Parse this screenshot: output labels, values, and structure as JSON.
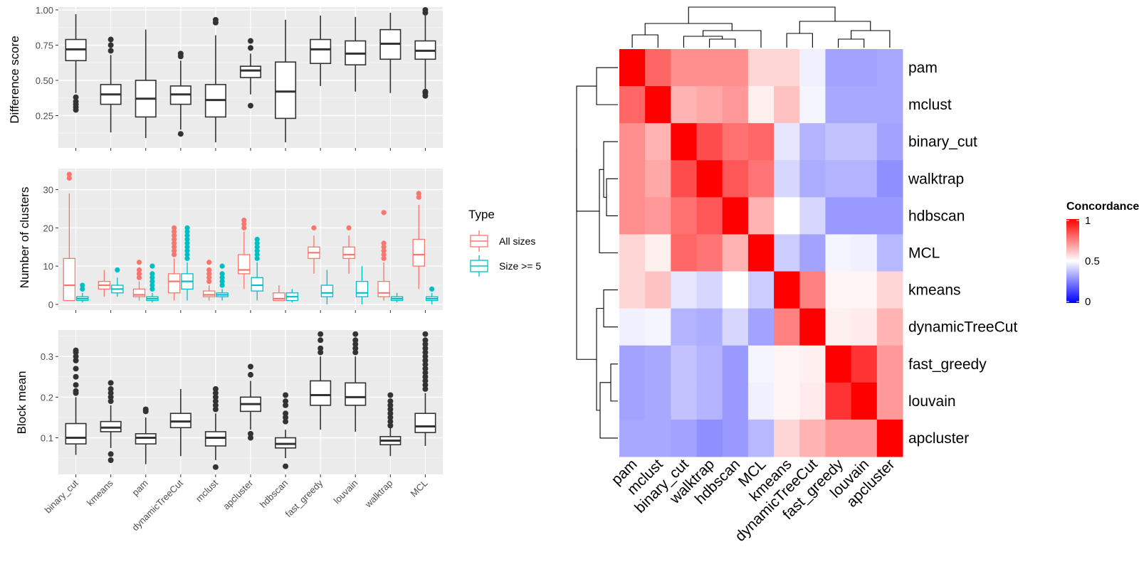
{
  "chart_data": [
    {
      "id": "difference-score",
      "type": "boxplot",
      "ylabel": "Difference score",
      "ylim": [
        0.02,
        1.02
      ],
      "yticks": [
        0.25,
        0.5,
        0.75,
        1.0
      ],
      "ytick_labels": [
        "0.25",
        "0.50",
        "0.75",
        "1.00"
      ],
      "categories": [
        "binary_cut",
        "kmeans",
        "pam",
        "dynamicTreeCut",
        "mclust",
        "apcluster",
        "hdbscan",
        "fast_greedy",
        "louvain",
        "walktrap",
        "MCL"
      ],
      "series": [
        {
          "name": "all",
          "color": "#333333",
          "boxes": [
            {
              "q1": 0.64,
              "median": 0.72,
              "q3": 0.79,
              "lo": 0.41,
              "hi": 0.97,
              "out": [
                0.29,
                0.31,
                0.33,
                0.35,
                0.38
              ]
            },
            {
              "q1": 0.33,
              "median": 0.4,
              "q3": 0.47,
              "lo": 0.13,
              "hi": 0.68,
              "out": [
                0.71,
                0.75,
                0.79
              ]
            },
            {
              "q1": 0.24,
              "median": 0.37,
              "q3": 0.5,
              "lo": 0.09,
              "hi": 0.86,
              "out": []
            },
            {
              "q1": 0.33,
              "median": 0.4,
              "q3": 0.46,
              "lo": 0.15,
              "hi": 0.64,
              "out": [
                0.12,
                0.67,
                0.69
              ]
            },
            {
              "q1": 0.24,
              "median": 0.36,
              "q3": 0.47,
              "lo": 0.06,
              "hi": 0.82,
              "out": [
                0.91,
                0.93
              ]
            },
            {
              "q1": 0.52,
              "median": 0.57,
              "q3": 0.6,
              "lo": 0.4,
              "hi": 0.69,
              "out": [
                0.32,
                0.73,
                0.78
              ]
            },
            {
              "q1": 0.23,
              "median": 0.42,
              "q3": 0.63,
              "lo": 0.06,
              "hi": 0.93,
              "out": []
            },
            {
              "q1": 0.62,
              "median": 0.72,
              "q3": 0.79,
              "lo": 0.46,
              "hi": 0.96,
              "out": []
            },
            {
              "q1": 0.61,
              "median": 0.69,
              "q3": 0.78,
              "lo": 0.42,
              "hi": 0.95,
              "out": []
            },
            {
              "q1": 0.65,
              "median": 0.76,
              "q3": 0.86,
              "lo": 0.41,
              "hi": 0.98,
              "out": []
            },
            {
              "q1": 0.65,
              "median": 0.71,
              "q3": 0.78,
              "lo": 0.44,
              "hi": 0.96,
              "out": [
                0.39,
                0.41,
                0.42,
                0.98,
                1.0
              ]
            }
          ]
        }
      ]
    },
    {
      "id": "number-of-clusters",
      "type": "boxplot",
      "ylabel": "Number of clusters",
      "ylim": [
        -1.5,
        35.5
      ],
      "yticks": [
        0,
        10,
        20,
        30
      ],
      "ytick_labels": [
        "0",
        "10",
        "20",
        "30"
      ],
      "categories": [
        "binary_cut",
        "kmeans",
        "pam",
        "dynamicTreeCut",
        "mclust",
        "apcluster",
        "hdbscan",
        "fast_greedy",
        "louvain",
        "walktrap",
        "MCL"
      ],
      "series": [
        {
          "name": "All sizes",
          "color": "#F8766D",
          "boxes": [
            {
              "q1": 1,
              "median": 5,
              "q3": 12,
              "lo": 1,
              "hi": 29,
              "out": [
                33,
                34
              ]
            },
            {
              "q1": 4,
              "median": 5,
              "q3": 6,
              "lo": 2,
              "hi": 9,
              "out": []
            },
            {
              "q1": 2,
              "median": 2.5,
              "q3": 4,
              "lo": 1,
              "hi": 6,
              "out": [
                7,
                8,
                9,
                11
              ]
            },
            {
              "q1": 3,
              "median": 6,
              "q3": 8,
              "lo": 1,
              "hi": 12,
              "out": [
                13,
                14,
                15,
                16,
                17,
                18,
                19,
                20
              ]
            },
            {
              "q1": 2,
              "median": 2.5,
              "q3": 3.5,
              "lo": 1,
              "hi": 5,
              "out": [
                6,
                7,
                8,
                9,
                11
              ]
            },
            {
              "q1": 8,
              "median": 9,
              "q3": 13,
              "lo": 4,
              "hi": 19,
              "out": [
                20,
                21,
                22
              ]
            },
            {
              "q1": 1,
              "median": 1.5,
              "q3": 3,
              "lo": 1,
              "hi": 5,
              "out": []
            },
            {
              "q1": 12,
              "median": 13.5,
              "q3": 15,
              "lo": 8,
              "hi": 18,
              "out": [
                20
              ]
            },
            {
              "q1": 12,
              "median": 13,
              "q3": 15,
              "lo": 8,
              "hi": 18,
              "out": [
                20
              ]
            },
            {
              "q1": 2,
              "median": 3,
              "q3": 6,
              "lo": 1,
              "hi": 11,
              "out": [
                12,
                13,
                14,
                15,
                16,
                24
              ]
            },
            {
              "q1": 10,
              "median": 13,
              "q3": 17,
              "lo": 4,
              "hi": 26,
              "out": [
                28,
                29
              ]
            }
          ]
        },
        {
          "name": "Size >= 5",
          "color": "#00BFC4",
          "boxes": [
            {
              "q1": 1,
              "median": 1.5,
              "q3": 2,
              "lo": 0.5,
              "hi": 3,
              "out": [
                4,
                5
              ]
            },
            {
              "q1": 3,
              "median": 4,
              "q3": 5,
              "lo": 2,
              "hi": 7,
              "out": [
                9
              ]
            },
            {
              "q1": 1,
              "median": 1.5,
              "q3": 2,
              "lo": 0.5,
              "hi": 3,
              "out": [
                4,
                5,
                6,
                7,
                8,
                10
              ]
            },
            {
              "q1": 4,
              "median": 6,
              "q3": 8,
              "lo": 1,
              "hi": 11,
              "out": [
                12,
                13,
                14,
                15,
                16,
                17,
                18,
                19,
                20
              ]
            },
            {
              "q1": 2,
              "median": 2.5,
              "q3": 3,
              "lo": 1,
              "hi": 4,
              "out": [
                5,
                6,
                7,
                8,
                10
              ]
            },
            {
              "q1": 3.5,
              "median": 5,
              "q3": 7,
              "lo": 1,
              "hi": 11,
              "out": [
                12,
                13,
                14,
                15,
                16,
                17
              ]
            },
            {
              "q1": 1,
              "median": 2,
              "q3": 3,
              "lo": 0.5,
              "hi": 4,
              "out": []
            },
            {
              "q1": 2,
              "median": 3,
              "q3": 5,
              "lo": 0,
              "hi": 9,
              "out": []
            },
            {
              "q1": 2,
              "median": 3,
              "q3": 6,
              "lo": 0,
              "hi": 10,
              "out": []
            },
            {
              "q1": 1,
              "median": 1.5,
              "q3": 2,
              "lo": 0.5,
              "hi": 3,
              "out": []
            },
            {
              "q1": 1,
              "median": 1.5,
              "q3": 2,
              "lo": 0,
              "hi": 3,
              "out": [
                4
              ]
            }
          ]
        }
      ]
    },
    {
      "id": "block-mean",
      "type": "boxplot",
      "ylabel": "Block mean",
      "ylim": [
        0.01,
        0.365
      ],
      "yticks": [
        0.1,
        0.2,
        0.3
      ],
      "ytick_labels": [
        "0.1",
        "0.2",
        "0.3"
      ],
      "categories": [
        "binary_cut",
        "kmeans",
        "pam",
        "dynamicTreeCut",
        "mclust",
        "apcluster",
        "hdbscan",
        "fast_greedy",
        "louvain",
        "walktrap",
        "MCL"
      ],
      "series": [
        {
          "name": "all",
          "color": "#333333",
          "boxes": [
            {
              "q1": 0.085,
              "median": 0.1,
              "q3": 0.135,
              "lo": 0.058,
              "hi": 0.2,
              "out": [
                0.21,
                0.215,
                0.23,
                0.25,
                0.27,
                0.29,
                0.3,
                0.31,
                0.315
              ]
            },
            {
              "q1": 0.115,
              "median": 0.125,
              "q3": 0.14,
              "lo": 0.075,
              "hi": 0.18,
              "out": [
                0.045,
                0.06,
                0.19,
                0.2,
                0.21,
                0.22,
                0.235
              ]
            },
            {
              "q1": 0.085,
              "median": 0.1,
              "q3": 0.11,
              "lo": 0.035,
              "hi": 0.15,
              "out": [
                0.165,
                0.17
              ]
            },
            {
              "q1": 0.125,
              "median": 0.14,
              "q3": 0.16,
              "lo": 0.055,
              "hi": 0.22,
              "out": []
            },
            {
              "q1": 0.08,
              "median": 0.1,
              "q3": 0.115,
              "lo": 0.045,
              "hi": 0.16,
              "out": [
                0.028,
                0.17,
                0.18,
                0.19,
                0.2,
                0.21,
                0.22
              ]
            },
            {
              "q1": 0.165,
              "median": 0.183,
              "q3": 0.2,
              "lo": 0.12,
              "hi": 0.24,
              "out": [
                0.1,
                0.11,
                0.255,
                0.275
              ]
            },
            {
              "q1": 0.075,
              "median": 0.085,
              "q3": 0.1,
              "lo": 0.05,
              "hi": 0.12,
              "out": [
                0.03,
                0.14,
                0.15,
                0.16,
                0.18,
                0.19,
                0.205
              ]
            },
            {
              "q1": 0.18,
              "median": 0.205,
              "q3": 0.24,
              "lo": 0.12,
              "hi": 0.3,
              "out": [
                0.31,
                0.32,
                0.34,
                0.355
              ]
            },
            {
              "q1": 0.18,
              "median": 0.2,
              "q3": 0.235,
              "lo": 0.115,
              "hi": 0.3,
              "out": [
                0.31,
                0.32,
                0.33,
                0.34,
                0.355
              ]
            },
            {
              "q1": 0.083,
              "median": 0.093,
              "q3": 0.103,
              "lo": 0.055,
              "hi": 0.125,
              "out": [
                0.13,
                0.14,
                0.15,
                0.16,
                0.17,
                0.18,
                0.19,
                0.205
              ]
            },
            {
              "q1": 0.113,
              "median": 0.128,
              "q3": 0.16,
              "lo": 0.08,
              "hi": 0.21,
              "out": [
                0.22,
                0.23,
                0.24,
                0.25,
                0.26,
                0.27,
                0.28,
                0.29,
                0.3,
                0.31,
                0.32,
                0.33,
                0.34,
                0.355
              ]
            }
          ]
        }
      ]
    },
    {
      "id": "concordance-heatmap",
      "type": "heatmap",
      "rows": [
        "pam",
        "mclust",
        "binary_cut",
        "walktrap",
        "hdbscan",
        "MCL",
        "kmeans",
        "dynamicTreeCut",
        "fast_greedy",
        "louvain",
        "apcluster"
      ],
      "columns": [
        "pam",
        "mclust",
        "binary_cut",
        "walktrap",
        "hdbscan",
        "MCL",
        "kmeans",
        "dynamicTreeCut",
        "fast_greedy",
        "louvain",
        "apcluster"
      ],
      "values": [
        [
          1.0,
          0.8,
          0.72,
          0.72,
          0.72,
          0.58,
          0.58,
          0.47,
          0.32,
          0.32,
          0.33
        ],
        [
          0.8,
          1.0,
          0.65,
          0.67,
          0.7,
          0.53,
          0.62,
          0.48,
          0.33,
          0.33,
          0.33
        ],
        [
          0.72,
          0.65,
          1.0,
          0.85,
          0.78,
          0.8,
          0.45,
          0.35,
          0.38,
          0.38,
          0.32
        ],
        [
          0.72,
          0.67,
          0.85,
          1.0,
          0.83,
          0.77,
          0.42,
          0.34,
          0.35,
          0.35,
          0.28
        ],
        [
          0.72,
          0.7,
          0.78,
          0.83,
          1.0,
          0.65,
          0.5,
          0.42,
          0.3,
          0.3,
          0.3
        ],
        [
          0.58,
          0.53,
          0.8,
          0.77,
          0.65,
          1.0,
          0.4,
          0.32,
          0.48,
          0.47,
          0.36
        ],
        [
          0.58,
          0.62,
          0.45,
          0.42,
          0.5,
          0.4,
          1.0,
          0.75,
          0.52,
          0.52,
          0.58
        ],
        [
          0.47,
          0.48,
          0.35,
          0.34,
          0.42,
          0.32,
          0.75,
          1.0,
          0.53,
          0.54,
          0.65
        ],
        [
          0.32,
          0.33,
          0.38,
          0.35,
          0.3,
          0.48,
          0.52,
          0.53,
          1.0,
          0.9,
          0.7
        ],
        [
          0.32,
          0.33,
          0.38,
          0.35,
          0.3,
          0.47,
          0.52,
          0.54,
          0.9,
          1.0,
          0.7
        ],
        [
          0.33,
          0.33,
          0.32,
          0.28,
          0.3,
          0.36,
          0.58,
          0.65,
          0.7,
          0.7,
          1.0
        ]
      ],
      "colorscale": {
        "low": "#0000FF",
        "mid": "#FFFFFF",
        "high": "#FF0000",
        "limits": [
          0,
          0.5,
          1
        ]
      }
    }
  ],
  "legend": {
    "title": "Type",
    "items": [
      {
        "label": "All sizes",
        "color": "#F8766D"
      },
      {
        "label": "Size >= 5",
        "color": "#00BFC4"
      }
    ]
  },
  "colorbar": {
    "title": "Concordance",
    "ticks": [
      "1",
      "0.5",
      "0"
    ]
  }
}
